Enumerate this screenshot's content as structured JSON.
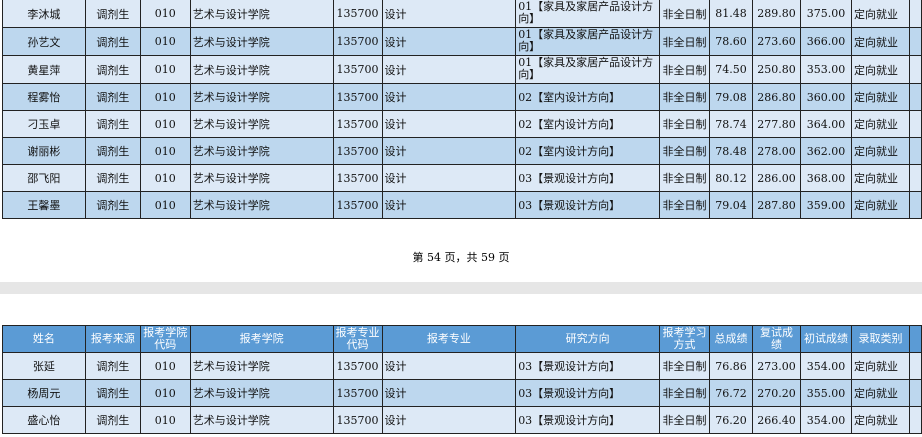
{
  "headers": [
    "姓名",
    "报考来源",
    "报考学院代码",
    "报考学院",
    "报考专业代码",
    "报考专业",
    "研究方向",
    "报考学习方式",
    "总成绩",
    "复试成绩",
    "初试成绩",
    "录取类别"
  ],
  "page1_rows": [
    [
      "李沐城",
      "调剂生",
      "010",
      "艺术与设计学院",
      "135700",
      "设计",
      "01【家具及家居产品设计方向】",
      "非全日制",
      "81.48",
      "289.80",
      "375.00",
      "定向就业"
    ],
    [
      "孙艺文",
      "调剂生",
      "010",
      "艺术与设计学院",
      "135700",
      "设计",
      "01【家具及家居产品设计方向】",
      "非全日制",
      "78.60",
      "273.60",
      "366.00",
      "定向就业"
    ],
    [
      "黄星萍",
      "调剂生",
      "010",
      "艺术与设计学院",
      "135700",
      "设计",
      "01【家具及家居产品设计方向】",
      "非全日制",
      "74.50",
      "250.80",
      "353.00",
      "定向就业"
    ],
    [
      "程雾怡",
      "调剂生",
      "010",
      "艺术与设计学院",
      "135700",
      "设计",
      "02【室内设计方向】",
      "非全日制",
      "79.08",
      "286.80",
      "360.00",
      "定向就业"
    ],
    [
      "刁玉卓",
      "调剂生",
      "010",
      "艺术与设计学院",
      "135700",
      "设计",
      "02【室内设计方向】",
      "非全日制",
      "78.74",
      "277.80",
      "364.00",
      "定向就业"
    ],
    [
      "谢丽彬",
      "调剂生",
      "010",
      "艺术与设计学院",
      "135700",
      "设计",
      "02【室内设计方向】",
      "非全日制",
      "78.48",
      "278.00",
      "362.00",
      "定向就业"
    ],
    [
      "邵飞阳",
      "调剂生",
      "010",
      "艺术与设计学院",
      "135700",
      "设计",
      "03【景观设计方向】",
      "非全日制",
      "80.12",
      "286.00",
      "368.00",
      "定向就业"
    ],
    [
      "王馨墨",
      "调剂生",
      "010",
      "艺术与设计学院",
      "135700",
      "设计",
      "03【景观设计方向】",
      "非全日制",
      "79.04",
      "287.80",
      "359.00",
      "定向就业"
    ]
  ],
  "pager": "第 54 页，共 59 页",
  "page2_rows": [
    [
      "张延",
      "调剂生",
      "010",
      "艺术与设计学院",
      "135700",
      "设计",
      "03【景观设计方向】",
      "非全日制",
      "76.86",
      "273.00",
      "354.00",
      "定向就业"
    ],
    [
      "杨周元",
      "调剂生",
      "010",
      "艺术与设计学院",
      "135700",
      "设计",
      "03【景观设计方向】",
      "非全日制",
      "76.72",
      "270.20",
      "355.00",
      "定向就业"
    ],
    [
      "盛心怡",
      "调剂生",
      "010",
      "艺术与设计学院",
      "135700",
      "设计",
      "03【景观设计方向】",
      "非全日制",
      "76.20",
      "266.40",
      "354.00",
      "定向就业"
    ]
  ]
}
